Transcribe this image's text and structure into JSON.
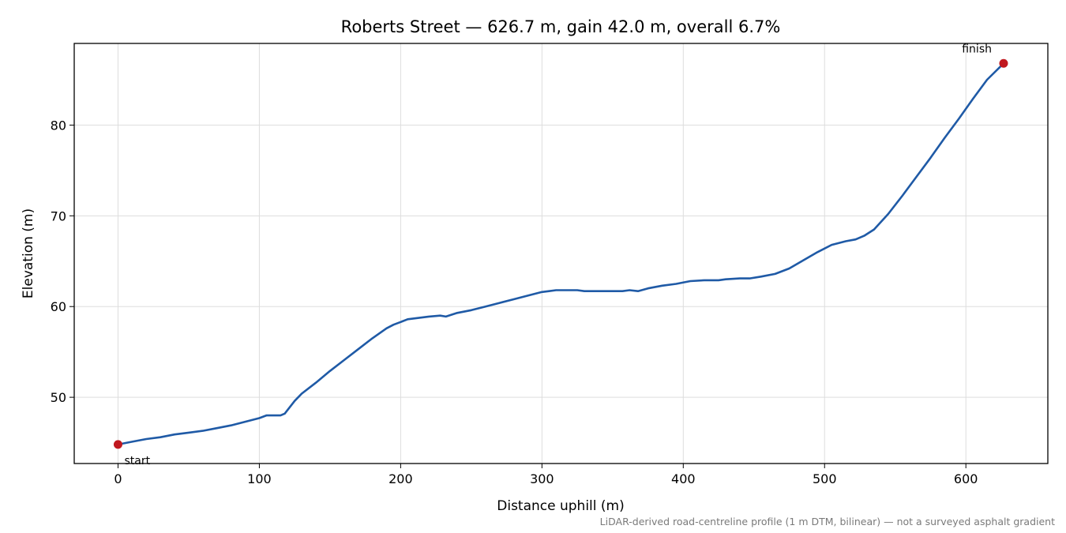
{
  "chart_data": {
    "type": "line",
    "title": "Roberts Street — 626.7 m, gain 42.0 m, overall 6.7%",
    "xlabel": "Distance uphill (m)",
    "ylabel": "Elevation (m)",
    "xlim": [
      -31,
      658
    ],
    "ylim": [
      42.7,
      89.0
    ],
    "xticks": [
      0,
      100,
      200,
      300,
      400,
      500,
      600
    ],
    "yticks": [
      50,
      60,
      70,
      80
    ],
    "grid": true,
    "line_color": "#1f5aa6",
    "marker_color": "#c0181f",
    "series": [
      {
        "x": [
          0,
          10,
          20,
          30,
          40,
          50,
          60,
          70,
          80,
          90,
          100,
          105,
          110,
          115,
          118,
          120,
          125,
          130,
          140,
          150,
          160,
          170,
          180,
          190,
          195,
          200,
          205,
          210,
          220,
          228,
          232,
          240,
          250,
          260,
          270,
          280,
          290,
          300,
          305,
          310,
          320,
          325,
          330,
          340,
          350,
          357,
          362,
          368,
          375,
          385,
          395,
          405,
          415,
          425,
          430,
          440,
          447,
          455,
          465,
          475,
          485,
          495,
          505,
          515,
          522,
          528,
          535,
          545,
          555,
          565,
          575,
          585,
          595,
          605,
          615,
          626.7
        ],
        "y": [
          44.8,
          45.1,
          45.4,
          45.6,
          45.9,
          46.1,
          46.3,
          46.6,
          46.9,
          47.3,
          47.7,
          48.0,
          48.0,
          48.0,
          48.2,
          48.6,
          49.6,
          50.4,
          51.6,
          52.9,
          54.1,
          55.3,
          56.5,
          57.6,
          58.0,
          58.3,
          58.6,
          58.7,
          58.9,
          59.0,
          58.9,
          59.3,
          59.6,
          60.0,
          60.4,
          60.8,
          61.2,
          61.6,
          61.7,
          61.8,
          61.8,
          61.8,
          61.7,
          61.7,
          61.7,
          61.7,
          61.8,
          61.7,
          62.0,
          62.3,
          62.5,
          62.8,
          62.9,
          62.9,
          63.0,
          63.1,
          63.1,
          63.3,
          63.6,
          64.2,
          65.1,
          66.0,
          66.8,
          67.2,
          67.4,
          67.8,
          68.5,
          70.2,
          72.2,
          74.3,
          76.4,
          78.6,
          80.7,
          82.9,
          85.0,
          86.8
        ]
      }
    ],
    "annotations": [
      {
        "text": "start",
        "x": 0,
        "y": 44.8
      },
      {
        "text": "finish",
        "x": 626.7,
        "y": 86.8
      }
    ],
    "footer": "LiDAR-derived road-centreline profile (1 m DTM, bilinear) — not a surveyed asphalt gradient"
  }
}
